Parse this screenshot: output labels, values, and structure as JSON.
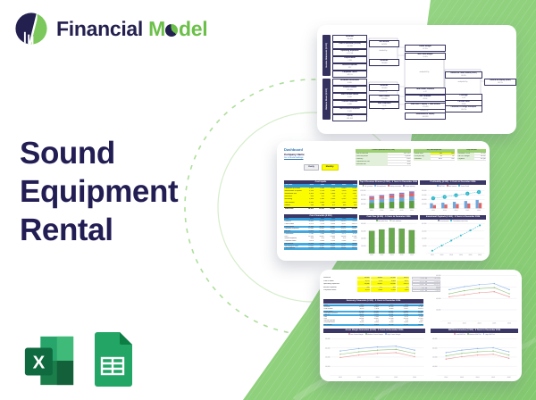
{
  "colors": {
    "navy": "#23204f",
    "brand_green": "#6cc04a",
    "accent_green": "#8fd07d",
    "band_navy": "#3a3766",
    "table_blue": "#41a8e0",
    "input_yellow": "#fcfc00",
    "teal": "#2ab7c9"
  },
  "logo": {
    "word1": "Financial",
    "word2_pre": "M",
    "word2_post": "del"
  },
  "hero": {
    "title_lines": [
      "Sound",
      "Equipment",
      "Rental"
    ]
  },
  "platform_icons": [
    {
      "name": "excel-icon",
      "label": "Microsoft Excel"
    },
    {
      "name": "google-sheets-icon",
      "label": "Google Sheets"
    }
  ],
  "flowchart": {
    "income_band": "Income Statement ($ 000)",
    "balance_band": "Balance Sheet ($ 000)",
    "col1_income": [
      [
        "Revenue",
        "736,860"
      ],
      [
        "Cost of Revenue (COGS)",
        "-94,388"
      ],
      [
        "Operating Expenses",
        "-121,748"
      ],
      [
        "Depreciation",
        "-7,381"
      ],
      [
        "Interest Expense",
        "-237"
      ],
      [
        "Corporate Taxes",
        "-62,574"
      ]
    ],
    "col1_balance": [
      [
        "Accounts Receivable",
        "8,981"
      ],
      [
        "Current Assets",
        "163,884"
      ],
      [
        "Non-Current Assets",
        "8,585"
      ],
      [
        "Current Liabilities",
        "4,985"
      ],
      [
        "Non-Current Liabilities",
        "2,191"
      ],
      [
        "Equity",
        "165,293"
      ]
    ],
    "col2": [
      {
        "t": "b",
        "l": "Net Income",
        "v": "146,631"
      },
      {
        "t": "o",
        "l": "divided by"
      },
      {
        "t": "b",
        "l": "Revenue",
        "v": "736,860"
      },
      {
        "t": "b",
        "l": "Revenue",
        "v": "736,860"
      },
      {
        "t": "o",
        "l": "divided by"
      },
      {
        "t": "b",
        "l": "Total Assets",
        "v": "172,469"
      },
      {
        "t": "b",
        "l": "Total Liabilities",
        "v": "7,176"
      },
      {
        "t": "o",
        "l": "and"
      }
    ],
    "col3": [
      {
        "t": "b",
        "l": "Gross margin",
        "v": "87.2%"
      },
      {
        "t": "b",
        "l": "Net Profit Margin",
        "v": "19.9%"
      },
      {
        "t": "o",
        "l": "multiplied by"
      },
      {
        "t": "b",
        "l": "Total Asset Turnover",
        "v": "4.27"
      },
      {
        "t": "b",
        "l": "A/R Turnover",
        "v": "82.05"
      },
      {
        "t": "b",
        "l": "Total Debt + Equity = Total Assets",
        "v": "172,469"
      },
      {
        "t": "o",
        "l": "divided by"
      },
      {
        "t": "b",
        "l": "Shareholders' Equity",
        "v": "165,293"
      }
    ],
    "col4": [
      {
        "t": "b",
        "l": "Return on Total Assets (ROA)",
        "v": "85.0%"
      },
      {
        "t": "o",
        "l": "multiplied by"
      },
      {
        "t": "b",
        "l": "Leverage",
        "v": "1.04"
      },
      {
        "t": "b",
        "l": "Current Ratio",
        "v": "32.88"
      },
      {
        "t": "b",
        "l": "Financial Leverage multiplier",
        "v": "104.3%"
      }
    ],
    "col5": [
      {
        "t": "b",
        "l": "Return on Equity (ROE)",
        "v": "88.7%"
      }
    ]
  },
  "dashboard": {
    "title": "Dashboard",
    "company": "Company Name",
    "link": "Go to Model Settings",
    "buttons": [
      "Yearly",
      "Monthly"
    ],
    "param_tables": [
      {
        "title": "Current parameters ($ 000)",
        "rows": [
          [
            "Start of forecast",
            "Jan 2022"
          ],
          [
            "Forecast period",
            "5 years"
          ],
          [
            "Currency",
            "USD"
          ],
          [
            "Corporate tax rate",
            "25%"
          ],
          [
            "Discount rate",
            "10%"
          ]
        ]
      },
      {
        "title": "Key assumptions",
        "rows": [
          [
            "Rental units",
            "120",
            "180"
          ],
          [
            "Price per day",
            "85",
            "95"
          ],
          [
            "Utilization",
            "62%",
            "71%"
          ]
        ]
      },
      {
        "title": "Key metrics",
        "rows": [
          [
            "Revenue CAGR",
            "12.4%"
          ],
          [
            "EBITDA margin",
            "38.2%"
          ],
          [
            "Payback",
            "2.6 yrs"
          ]
        ]
      }
    ],
    "cost_inputs": {
      "title": "Cost inputs",
      "header": [
        "Cost item",
        "2022",
        "2023",
        "2024",
        "2025",
        "2026"
      ],
      "rows": [
        [
          "Equipment purchase",
          "5,200",
          "5,460",
          "5,733",
          "6,020",
          "6,321"
        ],
        [
          "Maintenance & repairs",
          "1,310",
          "1,376",
          "1,444",
          "1,516",
          "1,592"
        ],
        [
          "Warehouse rent",
          "2,400",
          "2,520",
          "2,646",
          "2,778",
          "2,917"
        ],
        [
          "Insurance",
          "640",
          "672",
          "706",
          "741",
          "778"
        ],
        [
          "Marketing",
          "1,850",
          "1,943",
          "2,040",
          "2,142",
          "2,249"
        ],
        [
          "Staff salaries",
          "6,480",
          "6,804",
          "7,144",
          "7,501",
          "7,876"
        ],
        [
          "Utilities",
          "520",
          "546",
          "573",
          "602",
          "632"
        ]
      ],
      "total_row": [
        "Total costs",
        "18,400",
        "19,321",
        "20,286",
        "21,300",
        "22,365"
      ]
    },
    "core_financials": {
      "title": "Core Financials ($ 000)",
      "header": [
        "$ 000",
        "2022",
        "2023",
        "2024",
        "2025",
        "2026"
      ],
      "rows": [
        {
          "c": [
            "Revenue",
            "43,800",
            "49,860",
            "56,420",
            "63,510",
            "71,160"
          ]
        },
        {
          "c": [
            "Cost of sales",
            "-6,570",
            "-7,479",
            "-8,463",
            "-9,527",
            "-10,674"
          ]
        },
        {
          "c": [
            "Gross profit",
            "37,230",
            "42,381",
            "47,957",
            "53,983",
            "60,486"
          ],
          "hl": true
        },
        {
          "c": [
            "Operating expenses",
            "-18,396",
            "-20,941",
            "-23,696",
            "-26,674",
            "-29,887"
          ]
        },
        {
          "c": [
            "EBITDA",
            "18,834",
            "21,440",
            "24,261",
            "27,309",
            "30,599"
          ],
          "hl": true
        },
        {
          "c": [
            "Depreciation",
            "-2,190",
            "-2,493",
            "-2,821",
            "-3,176",
            "-3,558"
          ]
        },
        {
          "c": [
            "EBIT",
            "16,644",
            "18,947",
            "21,440",
            "24,133",
            "27,041"
          ]
        },
        {
          "c": [
            "Interest expense",
            "-329",
            "-374",
            "-423",
            "-476",
            "-534"
          ]
        },
        {
          "c": [
            "Corporate taxes",
            "-4,079",
            "-4,643",
            "-5,254",
            "-5,914",
            "-6,627"
          ]
        },
        {
          "c": [
            "Net income",
            "12,236",
            "13,930",
            "15,763",
            "17,743",
            "19,880"
          ],
          "hl": true
        },
        {
          "c": [
            "Net change in cash",
            "10,046",
            "11,437",
            "12,942",
            "14,567",
            "16,322"
          ]
        },
        {
          "c": [
            "Cash balance",
            "10,046",
            "21,483",
            "34,425",
            "48,992",
            "65,314"
          ],
          "hl": true
        }
      ]
    }
  },
  "forecast": {
    "input_labels": [
      "Revenue",
      "Cost of sales",
      "Operating expenses",
      "Interest expense",
      "Corporate taxes"
    ],
    "input_grid": [
      [
        "43,800",
        "49,860",
        "56,420",
        "63,510"
      ],
      [
        "-6,570",
        "-7,479",
        "-8,463",
        "-9,527"
      ],
      [
        "-18,396",
        "-20,941",
        "-23,696",
        "-26,674"
      ],
      [
        "-329",
        "-374",
        "-423",
        "-476"
      ],
      [
        "-4,079",
        "-4,643",
        "-5,254",
        "-5,914"
      ]
    ],
    "side_cells": [
      [
        "71,160",
        "79,700"
      ],
      [
        "-10,674",
        "-11,956"
      ],
      [
        "-29,887",
        "-33,473"
      ],
      [
        "-534",
        "-598"
      ],
      [
        "-6,627",
        "-7,422"
      ]
    ],
    "summary": {
      "title": "Summary Financials ($ 000) - 5 Years to December 2026",
      "header": [
        "$ 000",
        "2022",
        "2023",
        "2024",
        "2025",
        "2026"
      ],
      "rows": [
        {
          "c": [
            "Revenue",
            "43,800",
            "49,860",
            "56,420",
            "63,510",
            "71,160"
          ]
        },
        {
          "c": [
            "Cost of sales",
            "-6,570",
            "-7,479",
            "-8,463",
            "-9,527",
            "-10,674"
          ]
        },
        {
          "c": [
            "Gross profit",
            "37,230",
            "42,381",
            "47,957",
            "53,983",
            "60,486"
          ],
          "hl": true
        },
        {
          "c": [
            "Operating expenses",
            "-18,396",
            "-20,941",
            "-23,696",
            "-26,674",
            "-29,887"
          ]
        },
        {
          "c": [
            "EBITDA",
            "18,834",
            "21,440",
            "24,261",
            "27,309",
            "30,599"
          ],
          "hl": true
        },
        {
          "c": [
            "D&A",
            "-2,190",
            "-2,493",
            "-2,821",
            "-3,176",
            "-3,558"
          ]
        },
        {
          "c": [
            "EBIT",
            "16,644",
            "18,947",
            "21,440",
            "24,133",
            "27,041"
          ]
        },
        {
          "c": [
            "Interest expense",
            "-329",
            "-374",
            "-423",
            "-476",
            "-534"
          ]
        },
        {
          "c": [
            "Corporate taxes",
            "-4,079",
            "-4,643",
            "-5,254",
            "-5,914",
            "-6,627"
          ]
        },
        {
          "c": [
            "Net income",
            "12,236",
            "13,930",
            "15,763",
            "17,743",
            "19,880"
          ],
          "hl": true
        }
      ]
    }
  },
  "chart_data": [
    {
      "id": "revenue_streams",
      "type": "stacked",
      "title": "Top 5 Revenue Streams ($ 000) - 5 Years to December 2026",
      "categories": [
        "2022",
        "2023",
        "2024",
        "2025",
        "2026"
      ],
      "series": [
        {
          "name": "PA systems",
          "color": "#5d9e44",
          "values": [
            38,
            41,
            45,
            48,
            52
          ]
        },
        {
          "name": "Microphones",
          "color": "#6fa8dc",
          "values": [
            21,
            23,
            25,
            27,
            29
          ]
        },
        {
          "name": "Mixing consoles",
          "color": "#e06666",
          "values": [
            15,
            16,
            18,
            19,
            21
          ]
        },
        {
          "name": "Stage lighting",
          "color": "#8e7cc3",
          "values": [
            9,
            10,
            11,
            12,
            13
          ]
        }
      ],
      "legend": [
        "PA systems",
        "Microphones",
        "Mixing consoles",
        "Stage lighting"
      ],
      "ymax": 120,
      "yticks": [
        "120,000",
        "90,000",
        "60,000",
        "30,000",
        "-"
      ]
    },
    {
      "id": "profitability",
      "type": "barline",
      "title": "Profitability ($ 000) - 5 Years to December 2026",
      "categories": [
        "2022",
        "2023",
        "2024",
        "2025",
        "2026"
      ],
      "bars": [
        {
          "name": "EBITDA",
          "color": "#6fa8dc",
          "values": [
            19,
            21,
            24,
            27,
            31
          ]
        },
        {
          "name": "Net Income",
          "color": "#e06666",
          "values": [
            12,
            14,
            16,
            18,
            20
          ]
        }
      ],
      "line": {
        "name": "Gross Profit",
        "color": "#2ab7c9",
        "values": [
          37,
          42,
          48,
          54,
          60
        ]
      },
      "legend": [
        "EBITDA",
        "Net Income",
        "Gross Profit"
      ],
      "legend_colors": [
        "#6fa8dc",
        "#e06666",
        "#2ab7c9"
      ],
      "ymax": 65,
      "yticks": [
        "60,000",
        "45,000",
        "30,000",
        "15,000",
        "-"
      ]
    },
    {
      "id": "cash_flow",
      "type": "bar",
      "title": "Cash flow ($ 000) - 5 Years to December 2026",
      "categories": [
        "2022",
        "2023",
        "2024",
        "2025",
        "2026"
      ],
      "series": [
        {
          "name": "Net cash flow",
          "color": "#6aa84f",
          "values": [
            30,
            32,
            34,
            33,
            31
          ]
        }
      ],
      "legend": [
        "Net cash flow",
        "Cash balance"
      ],
      "legend_colors": [
        "#6aa84f",
        "#b6d7a8"
      ],
      "ymax": 40,
      "yticks": [
        "40,000",
        "30,000",
        "20,000",
        "10,000",
        "-"
      ]
    },
    {
      "id": "investment_payback",
      "type": "line",
      "title": "Investment Payback ($ 000) - 5 Years to December 2026",
      "categories": [
        "2021",
        "2022",
        "2023",
        "2024",
        "2025",
        "2026"
      ],
      "series": [
        {
          "name": "Cumulative cash flow",
          "color": "#2ab7c9",
          "values": [
            3,
            9,
            15,
            21,
            27,
            33
          ],
          "dash": true,
          "marker": "square"
        }
      ],
      "legend": [
        "Investments",
        "Cumulative cash flow"
      ],
      "legend_colors": [
        "#8a8a99",
        "#2ab7c9"
      ],
      "ymax": 35,
      "yticks": [
        "32,000",
        "24,000",
        "16,000",
        "8,000",
        "-"
      ]
    },
    {
      "id": "forecast_lines",
      "type": "line",
      "title": "",
      "categories": [
        "2022",
        "2023",
        "2024",
        "2025",
        "2026"
      ],
      "series": [
        {
          "name": "High",
          "color": "#8ab4e8",
          "values": [
            31,
            34,
            36,
            37,
            31
          ]
        },
        {
          "name": "Medium",
          "color": "#93c47d",
          "values": [
            27,
            30,
            32,
            33,
            27
          ]
        },
        {
          "name": "Low",
          "color": "#ea9999",
          "values": [
            24,
            26,
            28,
            29,
            24
          ]
        }
      ],
      "ymax": 45,
      "yticks": [
        "40,000",
        "30,000",
        "20,000",
        "10,000",
        "-"
      ]
    },
    {
      "id": "gross_margin_scenarios",
      "type": "line",
      "title": "Gross Margin Scenarios ($ 000) - 5 Years to December 2026",
      "categories": [
        "2022",
        "2023",
        "2024",
        "2025",
        "2026"
      ],
      "series": [
        {
          "name": "Low Gross Margin",
          "color": "#ea9999",
          "values": [
            22,
            25,
            27,
            28,
            23
          ]
        },
        {
          "name": "Medium Gross Margin",
          "color": "#93c47d",
          "values": [
            26,
            29,
            31,
            32,
            27
          ]
        },
        {
          "name": "High Gross Margin",
          "color": "#8ab4e8",
          "values": [
            30,
            33,
            35,
            36,
            31
          ]
        }
      ],
      "legend": [
        "Low Gross Margin",
        "Medium Gross Margin",
        "High Gross Margin"
      ],
      "legend_colors": [
        "#ea9999",
        "#93c47d",
        "#8ab4e8"
      ],
      "ymax": 45,
      "yticks": [
        "40,000",
        "30,000",
        "20,000",
        "10,000",
        "-"
      ]
    },
    {
      "id": "ebitda_scenarios",
      "type": "line",
      "title": "EBITDA Scenarios ($ 000) - 5 Years to December 2026",
      "categories": [
        "2022",
        "2023",
        "2024",
        "2025",
        "2026"
      ],
      "series": [
        {
          "name": "Low EBITDA",
          "color": "#ea9999",
          "values": [
            20,
            23,
            25,
            26,
            21
          ]
        },
        {
          "name": "Medium EBITDA",
          "color": "#93c47d",
          "values": [
            24,
            27,
            29,
            30,
            25
          ]
        },
        {
          "name": "High EBITDA",
          "color": "#8ab4e8",
          "values": [
            28,
            31,
            33,
            34,
            29
          ]
        }
      ],
      "legend": [
        "Low EBITDA",
        "Medium EBITDA",
        "High EBITDA"
      ],
      "legend_colors": [
        "#ea9999",
        "#93c47d",
        "#8ab4e8"
      ],
      "ymax": 45,
      "yticks": [
        "40,000",
        "30,000",
        "20,000",
        "10,000",
        "-"
      ]
    }
  ]
}
